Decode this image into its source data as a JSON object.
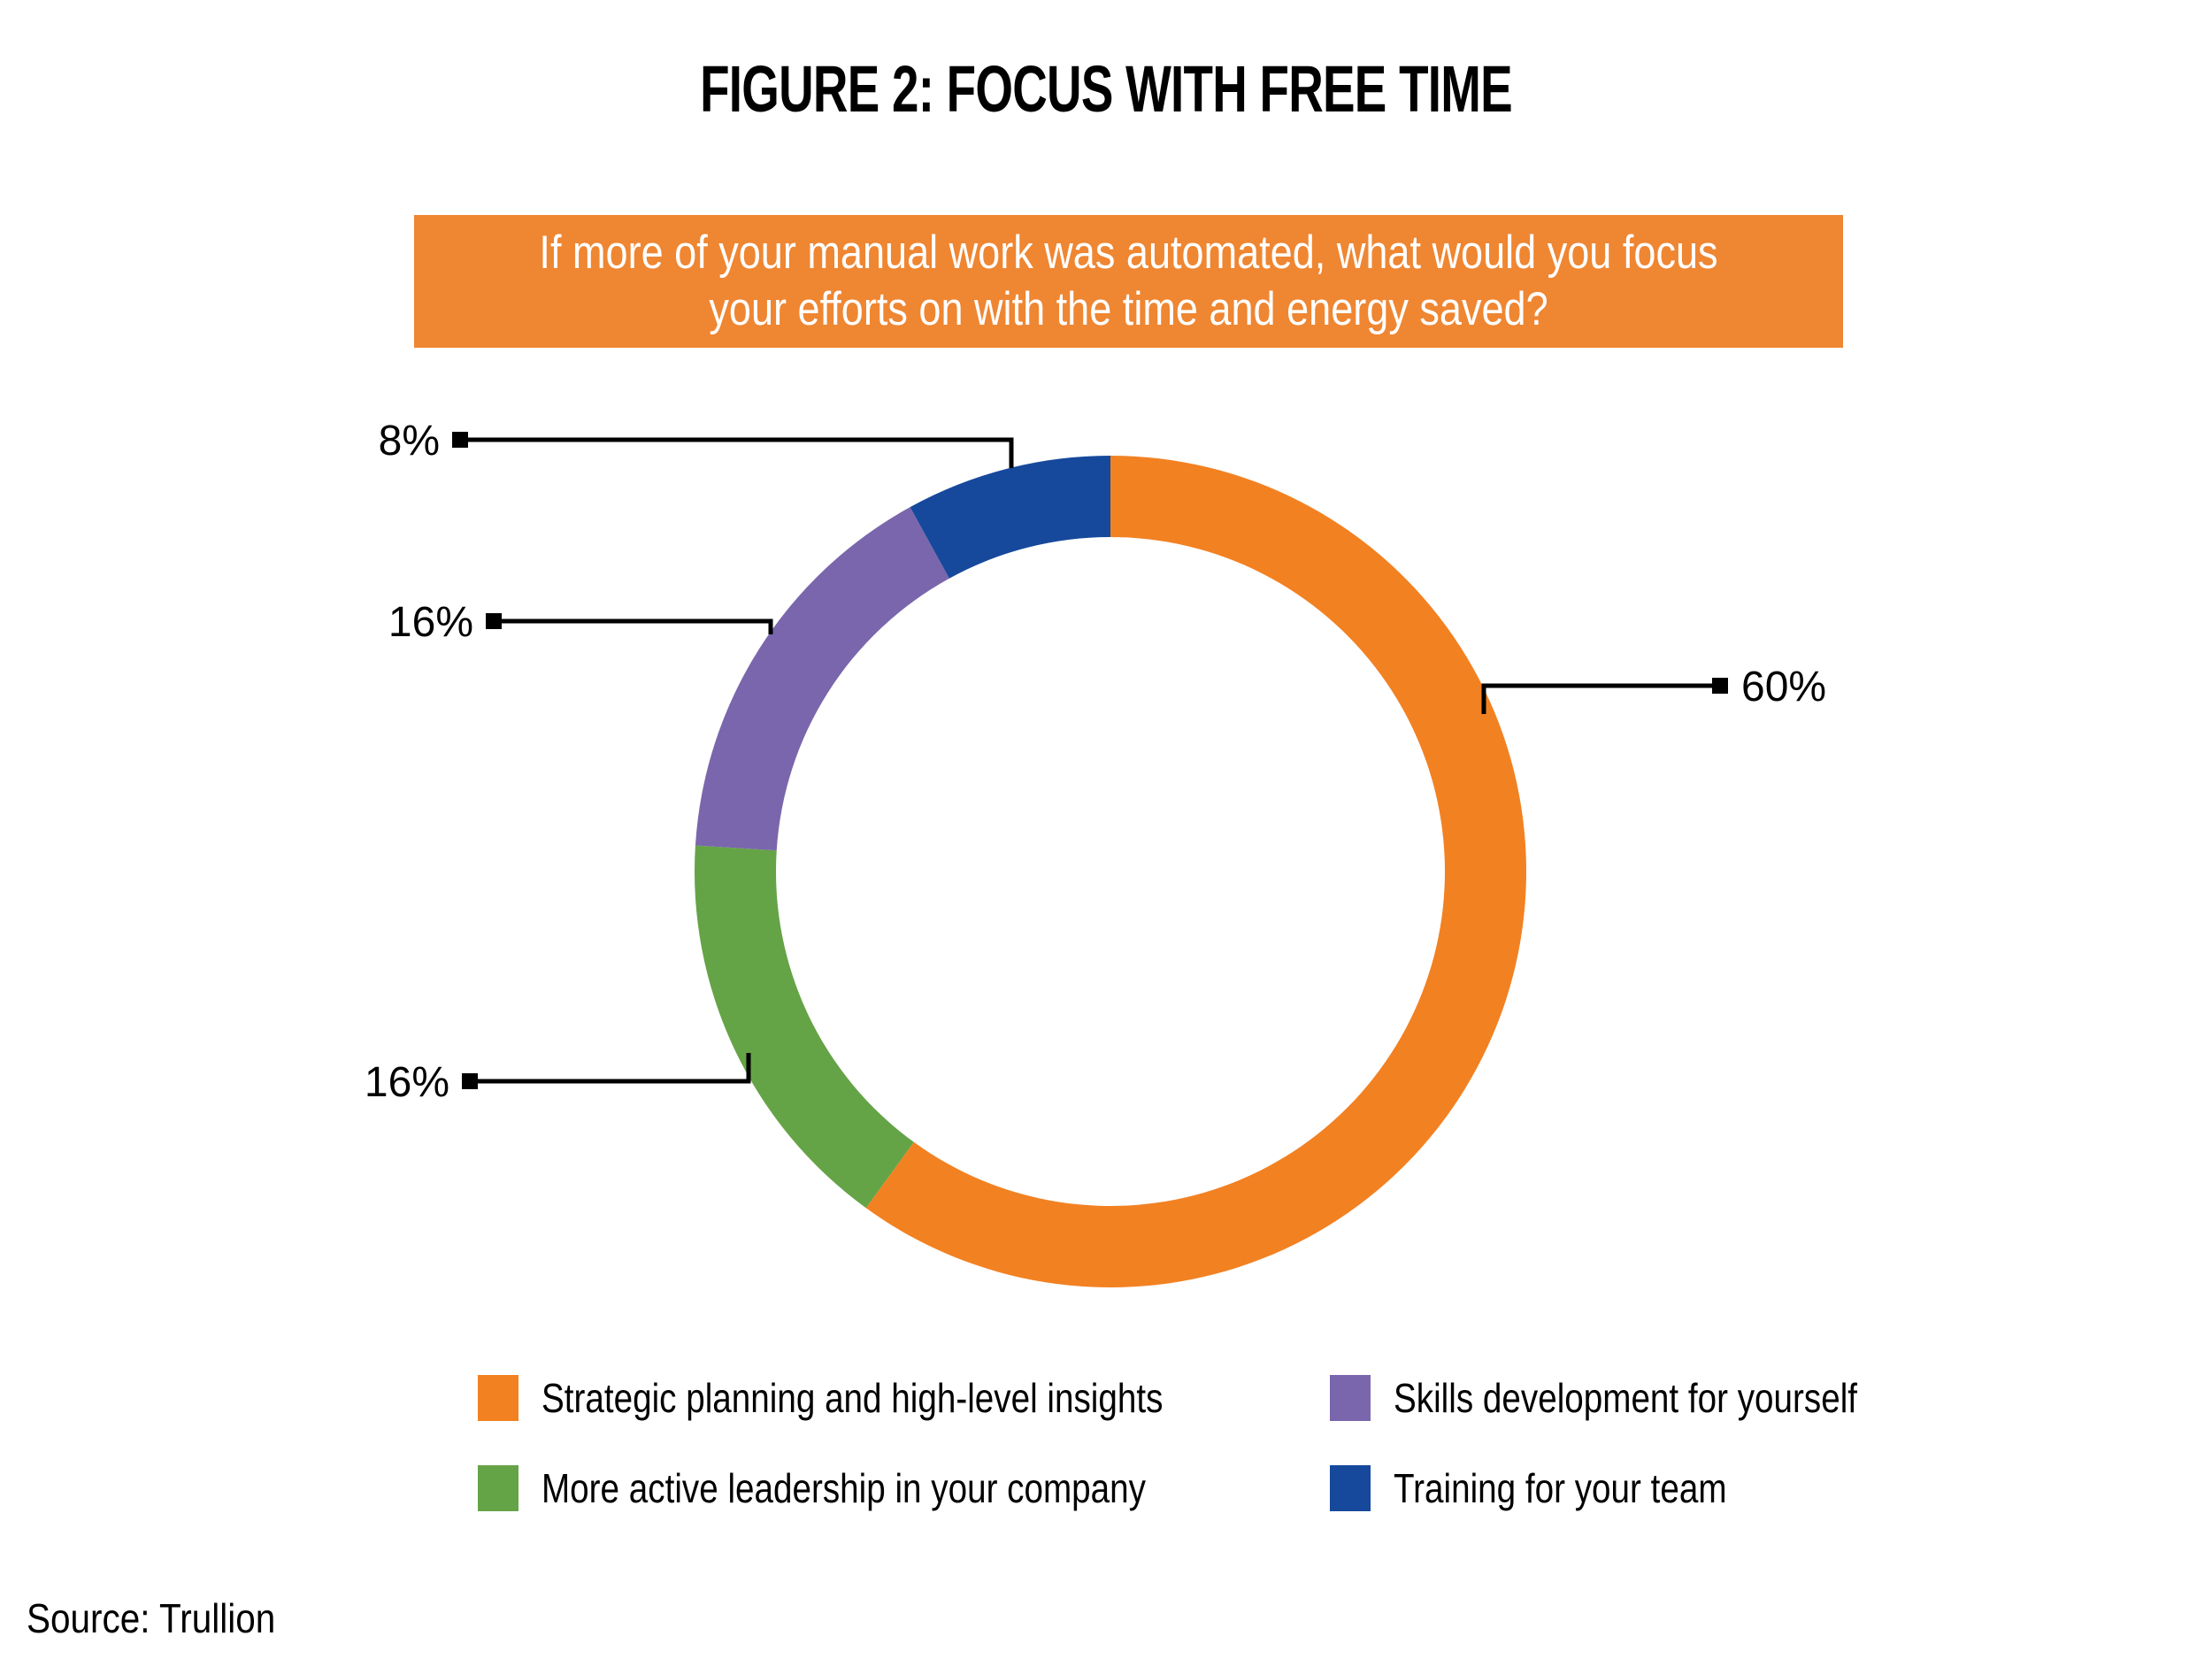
{
  "figure_title": "FIGURE 2: FOCUS WITH FREE TIME",
  "question_banner": {
    "lines": [
      "If more of your manual work was automated, what would you focus",
      "your efforts on with the time and energy saved?"
    ],
    "full_text": "If more of your manual work was automated, what would you focus your efforts on with the time and energy saved?",
    "bg_color": "#EF8632",
    "text_color": "#FFFFFF"
  },
  "chart_data": {
    "type": "pie",
    "variant": "donut",
    "title": "FIGURE 2: FOCUS WITH FREE TIME",
    "subtitle": "If more of your manual work was automated, what would you focus your efforts on with the time and energy saved?",
    "start_angle": "top",
    "direction": "clockwise",
    "grid": false,
    "legend_position": "bottom",
    "segments": [
      {
        "label": "Strategic planning and high-level insights",
        "value": 60,
        "pct_label": "60%",
        "color": "#F28122"
      },
      {
        "label": "More active leadership in your company",
        "value": 16,
        "pct_label": "16%",
        "color": "#65A347"
      },
      {
        "label": "Skills development for yourself",
        "value": 16,
        "pct_label": "16%",
        "color": "#7A66AC"
      },
      {
        "label": "Training for your team",
        "value": 8,
        "pct_label": "8%",
        "color": "#16499B"
      }
    ],
    "legend_columns": [
      [
        0,
        1
      ],
      [
        2,
        3
      ]
    ],
    "callout_line_color": "#000000",
    "label_text_color": "#000000"
  },
  "source": "Source: Trullion"
}
